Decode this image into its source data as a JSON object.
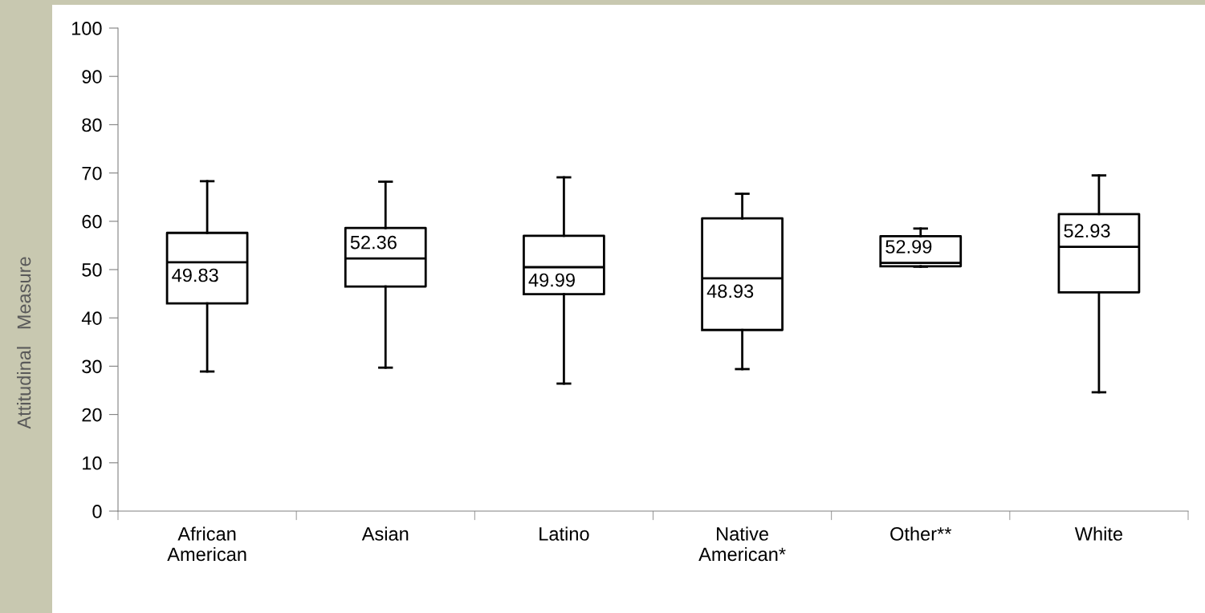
{
  "chart_data": {
    "type": "box",
    "ylabel": "Attitudinal   Measure",
    "categories": [
      "African\nAmerican",
      "Asian",
      "Latino",
      "Native\nAmerican*",
      "Other**",
      "White"
    ],
    "boxes": [
      {
        "low": 28.9,
        "q1": 43.0,
        "median": 51.5,
        "q3": 57.6,
        "high": 68.3
      },
      {
        "low": 29.7,
        "q1": 46.5,
        "median": 52.3,
        "q3": 58.6,
        "high": 68.2
      },
      {
        "low": 26.4,
        "q1": 44.9,
        "median": 50.5,
        "q3": 57.0,
        "high": 69.1
      },
      {
        "low": 29.4,
        "q1": 37.5,
        "median": 48.2,
        "q3": 60.6,
        "high": 65.7
      },
      {
        "low": 50.6,
        "q1": 50.7,
        "median": 51.4,
        "q3": 56.9,
        "high": 58.5
      },
      {
        "low": 24.6,
        "q1": 45.3,
        "median": 54.7,
        "q3": 61.5,
        "high": 69.5
      }
    ],
    "annotations": [
      "49.83",
      "52.36",
      "49.99",
      "48.93",
      "52.99",
      "52.93"
    ],
    "ylim": [
      0,
      100
    ],
    "yticks": [
      0,
      10,
      20,
      30,
      40,
      50,
      60,
      70,
      80,
      90,
      100
    ],
    "grid": false,
    "legend": false
  }
}
